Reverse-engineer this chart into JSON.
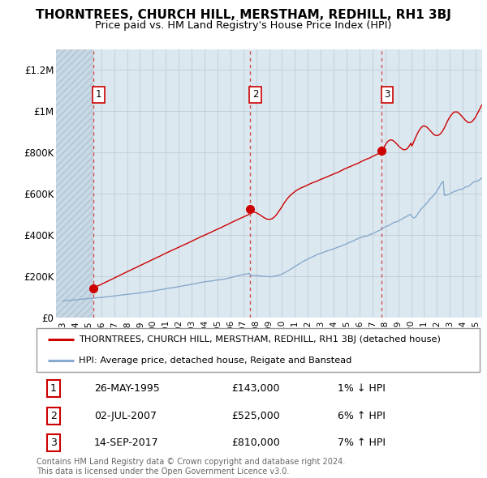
{
  "title": "THORNTREES, CHURCH HILL, MERSTHAM, REDHILL, RH1 3BJ",
  "subtitle": "Price paid vs. HM Land Registry's House Price Index (HPI)",
  "xlim": [
    1992.5,
    2025.5
  ],
  "ylim": [
    0,
    1300000
  ],
  "yticks": [
    0,
    200000,
    400000,
    600000,
    800000,
    1000000,
    1200000
  ],
  "ytick_labels": [
    "£0",
    "£200K",
    "£400K",
    "£600K",
    "£800K",
    "£1M",
    "£1.2M"
  ],
  "xticks": [
    1993,
    1994,
    1995,
    1996,
    1997,
    1998,
    1999,
    2000,
    2001,
    2002,
    2003,
    2004,
    2005,
    2006,
    2007,
    2008,
    2009,
    2010,
    2011,
    2012,
    2013,
    2014,
    2015,
    2016,
    2017,
    2018,
    2019,
    2020,
    2021,
    2022,
    2023,
    2024,
    2025
  ],
  "sale_dates": [
    1995.38,
    2007.5,
    2017.7
  ],
  "sale_prices": [
    143000,
    525000,
    810000
  ],
  "sale_labels": [
    "1",
    "2",
    "3"
  ],
  "red_color": "#cc0000",
  "blue_color": "#88aacc",
  "dashed_color": "#cc3333",
  "bg_color": "#ffffff",
  "plot_bg": "#dce8f0",
  "hatch_bg": "#c8d8e4",
  "grid_color": "#c0ccd8",
  "legend_red": "THORNTREES, CHURCH HILL, MERSTHAM, REDHILL, RH1 3BJ (detached house)",
  "legend_blue": "HPI: Average price, detached house, Reigate and Banstead",
  "table": [
    [
      "1",
      "26-MAY-1995",
      "£143,000",
      "1% ↓ HPI"
    ],
    [
      "2",
      "02-JUL-2007",
      "£525,000",
      "6% ↑ HPI"
    ],
    [
      "3",
      "14-SEP-2017",
      "£810,000",
      "7% ↑ HPI"
    ]
  ],
  "footnote": "Contains HM Land Registry data © Crown copyright and database right 2024.\nThis data is licensed under the Open Government Licence v3.0."
}
